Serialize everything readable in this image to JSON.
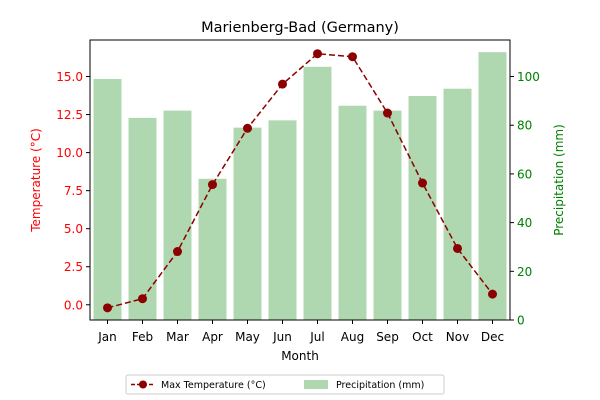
{
  "chart_data": {
    "type": "bar+line",
    "title": "Marienberg-Bad (Germany)",
    "xlabel": "Month",
    "ylabel_left": "Temperature (°C)",
    "ylabel_right": "Precipitation (mm)",
    "categories": [
      "Jan",
      "Feb",
      "Mar",
      "Apr",
      "May",
      "Jun",
      "Jul",
      "Aug",
      "Sep",
      "Oct",
      "Nov",
      "Dec"
    ],
    "ylim_left": [
      -1.0,
      17.4
    ],
    "ylim_right": [
      0,
      115
    ],
    "yticks_left": [
      "0.0",
      "2.5",
      "5.0",
      "7.5",
      "10.0",
      "12.5",
      "15.0"
    ],
    "yticks_right": [
      "0",
      "20",
      "40",
      "60",
      "80",
      "100"
    ],
    "series": [
      {
        "name": "Max Temperature (°C)",
        "type": "line",
        "axis": "left",
        "color": "#8b0000",
        "values": [
          -0.2,
          0.4,
          3.5,
          7.9,
          11.6,
          14.5,
          16.5,
          16.3,
          12.6,
          8.0,
          3.7,
          0.7
        ]
      },
      {
        "name": "Precipitation (mm)",
        "type": "bar",
        "axis": "right",
        "color": "#b0d8b0",
        "values": [
          99,
          83,
          86,
          58,
          79,
          82,
          104,
          88,
          86,
          92,
          95,
          110
        ]
      }
    ],
    "legend": {
      "placement": "bottom-center",
      "entries": [
        "Max Temperature (°C)",
        "Precipitation (mm)"
      ]
    },
    "colors": {
      "left_axis": "#ff0000",
      "right_axis": "#008000",
      "line": "#8b0000",
      "bars": "#b0d8b0"
    },
    "grid": false
  }
}
